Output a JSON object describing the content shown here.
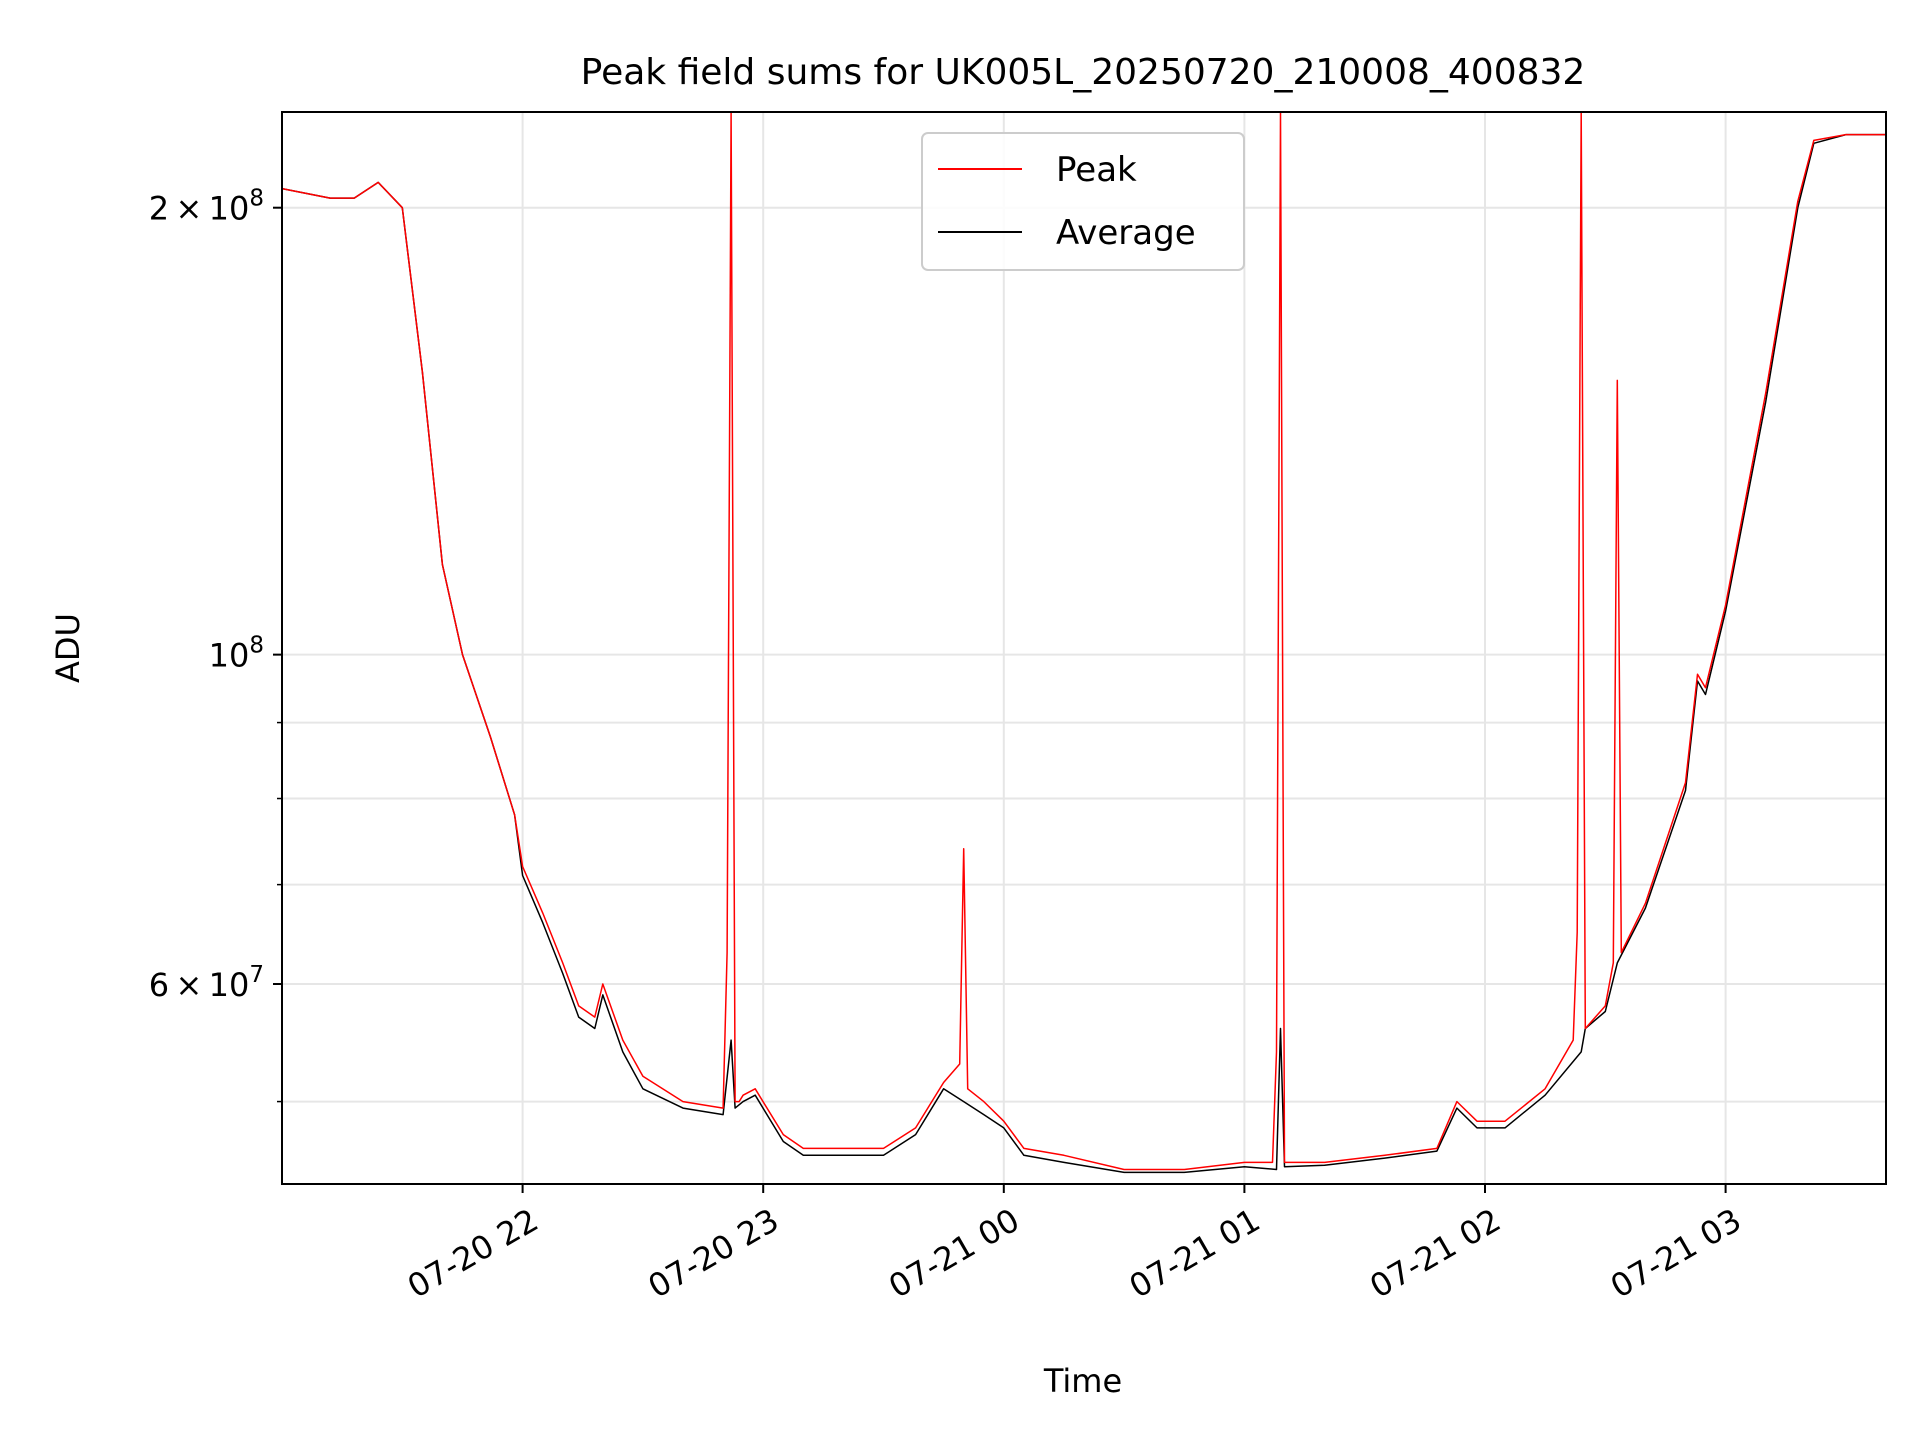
{
  "chart_data": {
    "type": "line",
    "title": "Peak field sums for UK005L_20250720_210008_400832",
    "xlabel": "Time",
    "ylabel": "ADU",
    "yscale": "log",
    "ylim": [
      44000000,
      232000000
    ],
    "xlim": [
      "2025-07-20 21:00",
      "2025-07-21 03:40"
    ],
    "grid": true,
    "legend": {
      "position": "top-center"
    },
    "xticks": [
      {
        "value": "2025-07-20 22:00",
        "label": "07-20 22"
      },
      {
        "value": "2025-07-20 23:00",
        "label": "07-20 23"
      },
      {
        "value": "2025-07-21 00:00",
        "label": "07-21 00"
      },
      {
        "value": "2025-07-21 01:00",
        "label": "07-21 01"
      },
      {
        "value": "2025-07-21 02:00",
        "label": "07-21 02"
      },
      {
        "value": "2025-07-21 03:00",
        "label": "07-21 03"
      }
    ],
    "yticks_major": [
      {
        "value": 60000000,
        "mantissa": "6",
        "sup": "7",
        "times": "×",
        "base": "10"
      },
      {
        "value": 100000000,
        "mantissa": "",
        "sup": "8",
        "times": "",
        "base": "10"
      },
      {
        "value": 200000000,
        "mantissa": "2",
        "sup": "8",
        "times": "×",
        "base": "10"
      }
    ],
    "yticks_minor": [
      50000000,
      70000000,
      80000000,
      90000000
    ],
    "colors": {
      "peak": "#ff0000",
      "average": "#000000",
      "grid": "#e6e6e6"
    },
    "series": [
      {
        "name": "Peak",
        "color": "#ff0000",
        "x": [
          "2025-07-20 21:00",
          "2025-07-20 21:12",
          "2025-07-20 21:18",
          "2025-07-20 21:24",
          "2025-07-20 21:30",
          "2025-07-20 21:35",
          "2025-07-20 21:40",
          "2025-07-20 21:45",
          "2025-07-20 21:52",
          "2025-07-20 21:58",
          "2025-07-20 22:00",
          "2025-07-20 22:05",
          "2025-07-20 22:10",
          "2025-07-20 22:14",
          "2025-07-20 22:18",
          "2025-07-20 22:20",
          "2025-07-20 22:25",
          "2025-07-20 22:30",
          "2025-07-20 22:40",
          "2025-07-20 22:50",
          "2025-07-20 22:51",
          "2025-07-20 22:52",
          "2025-07-20 22:53",
          "2025-07-20 22:54",
          "2025-07-20 22:55",
          "2025-07-20 22:58",
          "2025-07-20 23:05",
          "2025-07-20 23:10",
          "2025-07-20 23:20",
          "2025-07-20 23:30",
          "2025-07-20 23:38",
          "2025-07-20 23:45",
          "2025-07-20 23:49",
          "2025-07-20 23:50",
          "2025-07-20 23:51",
          "2025-07-20 23:55",
          "2025-07-21 00:00",
          "2025-07-21 00:05",
          "2025-07-21 00:15",
          "2025-07-21 00:30",
          "2025-07-21 00:45",
          "2025-07-21 01:00",
          "2025-07-21 01:07",
          "2025-07-21 01:08",
          "2025-07-21 01:09",
          "2025-07-21 01:10",
          "2025-07-21 01:11",
          "2025-07-21 01:20",
          "2025-07-21 01:35",
          "2025-07-21 01:48",
          "2025-07-21 01:53",
          "2025-07-21 01:58",
          "2025-07-21 02:05",
          "2025-07-21 02:15",
          "2025-07-21 02:22",
          "2025-07-21 02:23",
          "2025-07-21 02:24",
          "2025-07-21 02:25",
          "2025-07-21 02:30",
          "2025-07-21 02:32",
          "2025-07-21 02:33",
          "2025-07-21 02:34",
          "2025-07-21 02:40",
          "2025-07-21 02:50",
          "2025-07-21 02:53",
          "2025-07-21 02:55",
          "2025-07-21 03:00",
          "2025-07-21 03:10",
          "2025-07-21 03:18",
          "2025-07-21 03:22",
          "2025-07-21 03:30",
          "2025-07-21 03:40"
        ],
        "values": [
          206000000,
          203000000,
          203000000,
          208000000,
          200000000,
          155000000,
          115000000,
          100000000,
          88000000,
          78000000,
          72000000,
          67000000,
          62000000,
          58000000,
          57000000,
          60000000,
          55000000,
          52000000,
          50000000,
          49500000,
          63000000,
          232000000,
          50000000,
          50000000,
          50500000,
          51000000,
          47500000,
          46500000,
          46500000,
          46500000,
          48000000,
          51500000,
          53000000,
          74000000,
          51000000,
          50000000,
          48500000,
          46500000,
          46000000,
          45000000,
          45000000,
          45500000,
          45500000,
          54000000,
          232000000,
          45500000,
          45500000,
          45500000,
          46000000,
          46500000,
          50000000,
          48500000,
          48500000,
          51000000,
          55000000,
          65000000,
          232000000,
          56000000,
          58000000,
          62000000,
          153000000,
          63000000,
          68000000,
          82000000,
          97000000,
          95000000,
          108000000,
          150000000,
          202000000,
          222000000,
          224000000,
          224000000
        ]
      },
      {
        "name": "Average",
        "color": "#000000",
        "x": [
          "2025-07-20 21:00",
          "2025-07-20 21:12",
          "2025-07-20 21:18",
          "2025-07-20 21:24",
          "2025-07-20 21:30",
          "2025-07-20 21:35",
          "2025-07-20 21:40",
          "2025-07-20 21:45",
          "2025-07-20 21:52",
          "2025-07-20 21:58",
          "2025-07-20 22:00",
          "2025-07-20 22:05",
          "2025-07-20 22:10",
          "2025-07-20 22:14",
          "2025-07-20 22:18",
          "2025-07-20 22:20",
          "2025-07-20 22:25",
          "2025-07-20 22:30",
          "2025-07-20 22:40",
          "2025-07-20 22:50",
          "2025-07-20 22:52",
          "2025-07-20 22:53",
          "2025-07-20 22:55",
          "2025-07-20 22:58",
          "2025-07-20 23:05",
          "2025-07-20 23:10",
          "2025-07-20 23:20",
          "2025-07-20 23:30",
          "2025-07-20 23:38",
          "2025-07-20 23:45",
          "2025-07-20 23:50",
          "2025-07-20 23:55",
          "2025-07-21 00:00",
          "2025-07-21 00:05",
          "2025-07-21 00:15",
          "2025-07-21 00:30",
          "2025-07-21 00:45",
          "2025-07-21 01:00",
          "2025-07-21 01:08",
          "2025-07-21 01:09",
          "2025-07-21 01:10",
          "2025-07-21 01:20",
          "2025-07-21 01:35",
          "2025-07-21 01:48",
          "2025-07-21 01:53",
          "2025-07-21 01:58",
          "2025-07-21 02:05",
          "2025-07-21 02:15",
          "2025-07-21 02:24",
          "2025-07-21 02:25",
          "2025-07-21 02:30",
          "2025-07-21 02:33",
          "2025-07-21 02:40",
          "2025-07-21 02:50",
          "2025-07-21 02:53",
          "2025-07-21 02:55",
          "2025-07-21 03:00",
          "2025-07-21 03:10",
          "2025-07-21 03:18",
          "2025-07-21 03:22",
          "2025-07-21 03:30",
          "2025-07-21 03:40"
        ],
        "values": [
          206000000,
          203000000,
          203000000,
          208000000,
          200000000,
          155000000,
          115000000,
          100000000,
          88000000,
          78000000,
          71000000,
          66000000,
          61000000,
          57000000,
          56000000,
          59000000,
          54000000,
          51000000,
          49500000,
          49000000,
          55000000,
          49500000,
          50000000,
          50500000,
          47000000,
          46000000,
          46000000,
          46000000,
          47500000,
          51000000,
          50000000,
          49000000,
          48000000,
          46000000,
          45500000,
          44800000,
          44800000,
          45200000,
          45000000,
          56000000,
          45200000,
          45300000,
          45800000,
          46300000,
          49500000,
          48000000,
          48000000,
          50500000,
          54000000,
          56000000,
          57500000,
          62000000,
          67500000,
          81000000,
          96000000,
          94000000,
          107000000,
          148000000,
          200000000,
          221000000,
          224000000,
          224000000
        ]
      }
    ]
  }
}
